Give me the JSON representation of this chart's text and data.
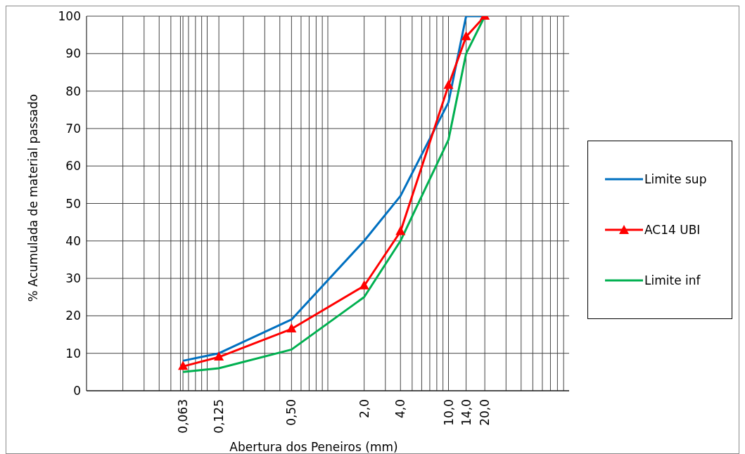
{
  "chart_data": {
    "type": "line",
    "xlabel": "Abertura dos Peneiros (mm)",
    "ylabel": "% Acumulada de material passado",
    "log": "x",
    "grid": true,
    "legend": "right",
    "line_style": "solid",
    "xlim": [
      0.01,
      100
    ],
    "xticks": [
      {
        "value": 0.02,
        "label": null
      },
      {
        "value": 0.03,
        "label": null
      },
      {
        "value": 0.04,
        "label": null
      },
      {
        "value": 0.05,
        "label": null
      },
      {
        "value": 0.06,
        "label": null
      },
      {
        "value": 0.063,
        "label": "0,063"
      },
      {
        "value": 0.07,
        "label": null
      },
      {
        "value": 0.08,
        "label": null
      },
      {
        "value": 0.09,
        "label": null
      },
      {
        "value": 0.1,
        "label": null
      },
      {
        "value": 0.125,
        "label": "0,125"
      },
      {
        "value": 0.2,
        "label": null
      },
      {
        "value": 0.3,
        "label": null
      },
      {
        "value": 0.4,
        "label": null
      },
      {
        "value": 0.5,
        "label": "0,50"
      },
      {
        "value": 0.6,
        "label": null
      },
      {
        "value": 0.7,
        "label": null
      },
      {
        "value": 0.8,
        "label": null
      },
      {
        "value": 0.9,
        "label": null
      },
      {
        "value": 1,
        "label": null
      },
      {
        "value": 2,
        "label": "2,0"
      },
      {
        "value": 3,
        "label": null
      },
      {
        "value": 4,
        "label": "4,0"
      },
      {
        "value": 5,
        "label": null
      },
      {
        "value": 6,
        "label": null
      },
      {
        "value": 7,
        "label": null
      },
      {
        "value": 8,
        "label": null
      },
      {
        "value": 9,
        "label": null
      },
      {
        "value": 10,
        "label": "10,0"
      },
      {
        "value": 14,
        "label": "14,0"
      },
      {
        "value": 20,
        "label": "20,0"
      },
      {
        "value": 30,
        "label": null
      },
      {
        "value": 40,
        "label": null
      },
      {
        "value": 50,
        "label": null
      },
      {
        "value": 60,
        "label": null
      },
      {
        "value": 70,
        "label": null
      },
      {
        "value": 80,
        "label": null
      },
      {
        "value": 90,
        "label": null
      }
    ],
    "ylim": [
      0,
      100
    ],
    "yticks": [
      0,
      10,
      20,
      30,
      40,
      50,
      60,
      70,
      80,
      90,
      100
    ],
    "x": [
      0.063,
      0.125,
      0.5,
      2,
      4,
      10,
      14,
      20
    ],
    "series": [
      {
        "name": "Limite sup",
        "color": "#0070c0",
        "marker": "none",
        "values": [
          8,
          10,
          19,
          40,
          52,
          77,
          100,
          100
        ]
      },
      {
        "name": "AC14 UBI",
        "color": "#ff0000",
        "marker": "triangle",
        "values": [
          6.5,
          9,
          16.5,
          28,
          42.5,
          81.5,
          94.5,
          100
        ]
      },
      {
        "name": "Limite inf",
        "color": "#00b050",
        "marker": "none",
        "values": [
          5,
          6,
          11,
          25,
          40,
          67,
          90,
          100
        ]
      }
    ]
  }
}
